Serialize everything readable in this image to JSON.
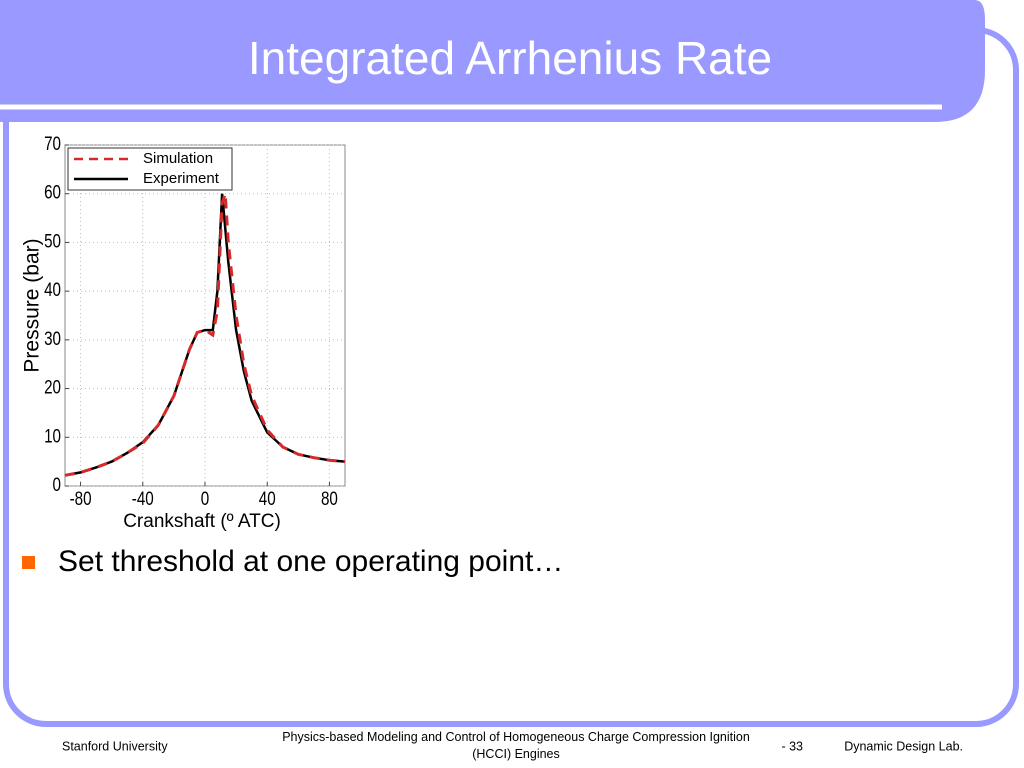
{
  "slide": {
    "title": "Integrated Arrhenius Rate",
    "bullet": "Set threshold at one operating point…",
    "footer": {
      "left": "Stanford University",
      "center": "Physics-based Modeling and Control of Homogeneous Charge Compression Ignition (HCCI) Engines",
      "page": "- 33",
      "right": "Dynamic Design Lab."
    }
  },
  "chart_data": {
    "type": "line",
    "x_label": "Crankshaft (º ATC)",
    "y_label": "Pressure (bar)",
    "x": [
      -90,
      -80,
      -70,
      -60,
      -50,
      -40,
      -30,
      -20,
      -10,
      -5,
      0,
      5,
      8,
      11,
      13,
      15,
      20,
      25,
      30,
      40,
      50,
      60,
      70,
      80,
      90
    ],
    "series": [
      {
        "name": "Simulation",
        "color": "#d42a2a",
        "dashed": true,
        "values": [
          2.2,
          2.8,
          3.8,
          5,
          6.8,
          8.8,
          12.5,
          18.5,
          28,
          31.5,
          32,
          31,
          36,
          58,
          60,
          50,
          35,
          25,
          18.5,
          11.5,
          8,
          6.5,
          5.8,
          5.3,
          5
        ]
      },
      {
        "name": "Experiment",
        "color": "#000000",
        "dashed": false,
        "values": [
          2.2,
          2.8,
          3.8,
          5,
          6.8,
          9,
          12.5,
          18.5,
          28,
          31.5,
          32,
          32,
          40,
          60,
          53,
          46,
          32,
          23.5,
          17.5,
          11,
          8,
          6.5,
          5.8,
          5.3,
          5
        ]
      }
    ],
    "xlim": [
      -90,
      90
    ],
    "ylim": [
      0,
      70
    ],
    "xticks": [
      -80,
      -40,
      0,
      40,
      80
    ],
    "yticks": [
      0,
      10,
      20,
      30,
      40,
      50,
      60,
      70
    ],
    "grid": true,
    "legend": "upper-left"
  }
}
